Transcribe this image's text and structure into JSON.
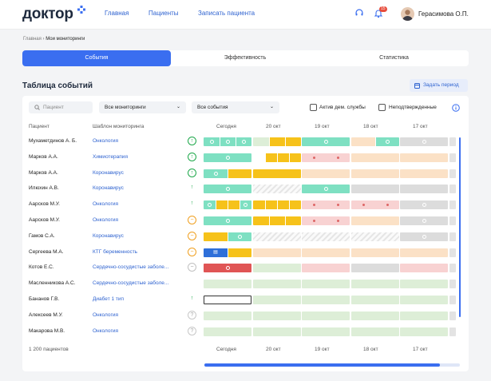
{
  "brand": {
    "logo_text": "доктор",
    "accent": "#3a6ef0"
  },
  "nav": {
    "main": "Главная",
    "patients": "Пациенты",
    "book": "Записать пациента"
  },
  "header": {
    "notif_count": "15",
    "user_name": "Герасимова О.П.",
    "icons": [
      "headset-icon",
      "bell-icon",
      "chevron-down-icon"
    ]
  },
  "breadcrumb": {
    "home": "Главная",
    "current": "Мои мониторинги"
  },
  "tabs": [
    {
      "label": "События",
      "active": true
    },
    {
      "label": "Эффективность",
      "active": false
    },
    {
      "label": "Статистика",
      "active": false
    }
  ],
  "section": {
    "title": "Таблица событий",
    "period_button": "Задать период"
  },
  "filters": {
    "search_placeholder": "Пациент",
    "monitoring_select": "Все мониторинги",
    "events_select": "Все события",
    "check1": "Актив дем. службы",
    "check2": "Неподтвержденные"
  },
  "columns": {
    "patient": "Пациент",
    "template": "Шаблон мониторинга",
    "days": [
      "Сегодня",
      "20 окт",
      "19 окт",
      "18 окт",
      "17 окт"
    ]
  },
  "colors": {
    "green": "#7ee0c2",
    "yellow": "#f6c21a",
    "peach": "#fbe1c6",
    "pink": "#f8d2d2",
    "gray": "#dcdcdc",
    "lightgreen": "#ddeed7",
    "red": "#e05555",
    "blue": "#2e6fd9"
  },
  "rows": [
    {
      "name": "Мухаметдинов А. Б.",
      "template": "Онкология",
      "status": "up",
      "cells": [
        [
          "green3"
        ],
        [
          "mix1"
        ],
        [
          "green-dots"
        ],
        [
          "green-mark"
        ],
        [
          "gray-mark"
        ]
      ]
    },
    {
      "name": "Марков А.А.",
      "template": "Химиотерапия",
      "status": "up",
      "cells": [
        [
          "green1"
        ],
        [
          "yellow-mix"
        ],
        [
          "pink-dots"
        ],
        [
          "peach"
        ],
        [
          "peach"
        ]
      ]
    },
    {
      "name": "Марков А.А.",
      "template": "Коронавирус",
      "status": "up",
      "cells": [
        [
          "green-yellow"
        ],
        [
          "yellow2"
        ],
        [
          "peach"
        ],
        [
          "peach"
        ],
        [
          "peach"
        ]
      ]
    },
    {
      "name": "Илюхин А.В.",
      "template": "Коронавирус",
      "status": "upn",
      "cells": [
        [
          "green1"
        ],
        [
          "hatch"
        ],
        [
          "green1"
        ],
        [
          "gray"
        ],
        [
          "gray"
        ]
      ]
    },
    {
      "name": "Аарсков М.У.",
      "template": "Онкология",
      "status": "upn",
      "cells": [
        [
          "ygmix"
        ],
        [
          "y4"
        ],
        [
          "pink-dots"
        ],
        [
          "pink-dots"
        ],
        [
          "gray-mark"
        ]
      ]
    },
    {
      "name": "Аарсков М.У.",
      "template": "Онкология",
      "status": "minus",
      "cells": [
        [
          "green1"
        ],
        [
          "y3"
        ],
        [
          "pink-dots"
        ],
        [
          "peach"
        ],
        [
          "gray-mark"
        ]
      ]
    },
    {
      "name": "Гамов С.А.",
      "template": "Коронавирус",
      "status": "minus",
      "cells": [
        [
          "yg"
        ],
        [
          "hatch"
        ],
        [
          "hatch"
        ],
        [
          "hatch"
        ],
        [
          "gray-mark"
        ]
      ]
    },
    {
      "name": "Сергеева М.А.",
      "template": "КТГ беременность",
      "status": "minus",
      "cells": [
        [
          "by"
        ],
        [
          "peach"
        ],
        [
          "peach"
        ],
        [
          "peach"
        ],
        [
          "peach"
        ]
      ]
    },
    {
      "name": "Котов Е.С.",
      "template": "Сердечно-сосудистые заболе...",
      "status": "minusgray",
      "cells": [
        [
          "red"
        ],
        [
          "lightgreen"
        ],
        [
          "pink"
        ],
        [
          "gray"
        ],
        [
          "pink"
        ]
      ]
    },
    {
      "name": "Масленникова А.С.",
      "template": "Сердечно-сосудистые заболе...",
      "status": "none",
      "cells": [
        [
          "lightgreen"
        ],
        [
          "lightgreen"
        ],
        [
          "lightgreen"
        ],
        [
          "lightgreen"
        ],
        [
          "lightgreen"
        ]
      ]
    },
    {
      "name": "Бананов Г.В.",
      "template": "Диабет 1 тип",
      "status": "upn",
      "cells": [
        [
          "outline"
        ],
        [
          "lightgreen"
        ],
        [
          "lightgreen"
        ],
        [
          "lightgreen"
        ],
        [
          "lightgreen"
        ]
      ]
    },
    {
      "name": "Алексеев М.У.",
      "template": "Онкология",
      "status": "q",
      "cells": [
        [
          "lightgreen"
        ],
        [
          "lightgreen"
        ],
        [
          "lightgreen"
        ],
        [
          "lightgreen"
        ],
        [
          "lightgreen"
        ]
      ]
    },
    {
      "name": "Макарова М.В.",
      "template": "Онкология",
      "status": "q",
      "cells": [
        [
          "lightgreen"
        ],
        [
          "lightgreen"
        ],
        [
          "lightgreen"
        ],
        [
          "lightgreen"
        ],
        [
          "lightgreen"
        ]
      ]
    }
  ],
  "footer": {
    "count": "1 200 пациентов"
  }
}
